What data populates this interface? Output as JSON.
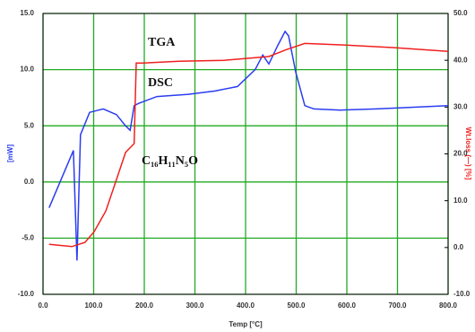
{
  "chart_data": {
    "type": "line",
    "x_label": "Temp [°C]",
    "y_label": "[mW]",
    "y2_label": "Wt.loss (—) [%]",
    "annotations": [
      "TGA",
      "DSC",
      "C₁₆H₁₁N₅O"
    ],
    "xlim": [
      0,
      800
    ],
    "xticks": [
      {
        "value": 0,
        "label": "0.0"
      },
      {
        "value": 100,
        "label": "100.0"
      },
      {
        "value": 200,
        "label": "200.0"
      },
      {
        "value": 300,
        "label": "300.0"
      },
      {
        "value": 400,
        "label": "400.0"
      },
      {
        "value": 500,
        "label": "500.0"
      },
      {
        "value": 600,
        "label": "600.0"
      },
      {
        "value": 700,
        "label": "700.0"
      },
      {
        "value": 800,
        "label": "800.0"
      }
    ],
    "ylim": [
      -10,
      15
    ],
    "yticks": [
      {
        "value": -10,
        "label": "-10.0"
      },
      {
        "value": -5,
        "label": "-5.0"
      },
      {
        "value": 0,
        "label": "0.0"
      },
      {
        "value": 5,
        "label": "5.0"
      },
      {
        "value": 10,
        "label": "10.0"
      },
      {
        "value": 15,
        "label": "15.0"
      }
    ],
    "y2lim": [
      -10,
      50
    ],
    "y2ticks": [
      {
        "value": -10,
        "label": "-10.0"
      },
      {
        "value": 0,
        "label": "0.0"
      },
      {
        "value": 10,
        "label": "10.0"
      },
      {
        "value": 20,
        "label": "20.0"
      },
      {
        "value": 30,
        "label": "30.0"
      },
      {
        "value": 40,
        "label": "40.0"
      },
      {
        "value": 50,
        "label": "50.0"
      }
    ],
    "grid": true,
    "grid_color": "#22aa22",
    "series": [
      {
        "name": "DSC",
        "color": "#2a3df0",
        "axis": "y",
        "x": [
          12,
          60,
          67,
          74,
          92,
          119,
          145,
          163,
          172,
          180,
          189,
          225,
          287,
          340,
          384,
          419,
          434,
          446,
          464,
          478,
          485,
          499,
          517,
          535,
          588,
          658,
          800
        ],
        "values": [
          -2.3,
          2.8,
          -7,
          4.2,
          6.2,
          6.5,
          6,
          5,
          4.6,
          6.8,
          7,
          7.6,
          7.8,
          8.1,
          8.5,
          10,
          11.3,
          10.5,
          12.2,
          13.4,
          13,
          9.8,
          6.8,
          6.5,
          6.4,
          6.5,
          6.8
        ]
      },
      {
        "name": "TGA",
        "color": "#f02020",
        "axis": "y2",
        "x": [
          12,
          57,
          83,
          101,
          124,
          145,
          163,
          180,
          184,
          198,
          269,
          358,
          446,
          481,
          517,
          588,
          694,
          800
        ],
        "values": [
          0.7,
          0.2,
          1.1,
          3.4,
          7.8,
          14.5,
          20.3,
          22.2,
          39.4,
          39.4,
          39.8,
          40,
          40.8,
          42.3,
          43.6,
          43.3,
          42.7,
          41.9
        ]
      }
    ]
  }
}
